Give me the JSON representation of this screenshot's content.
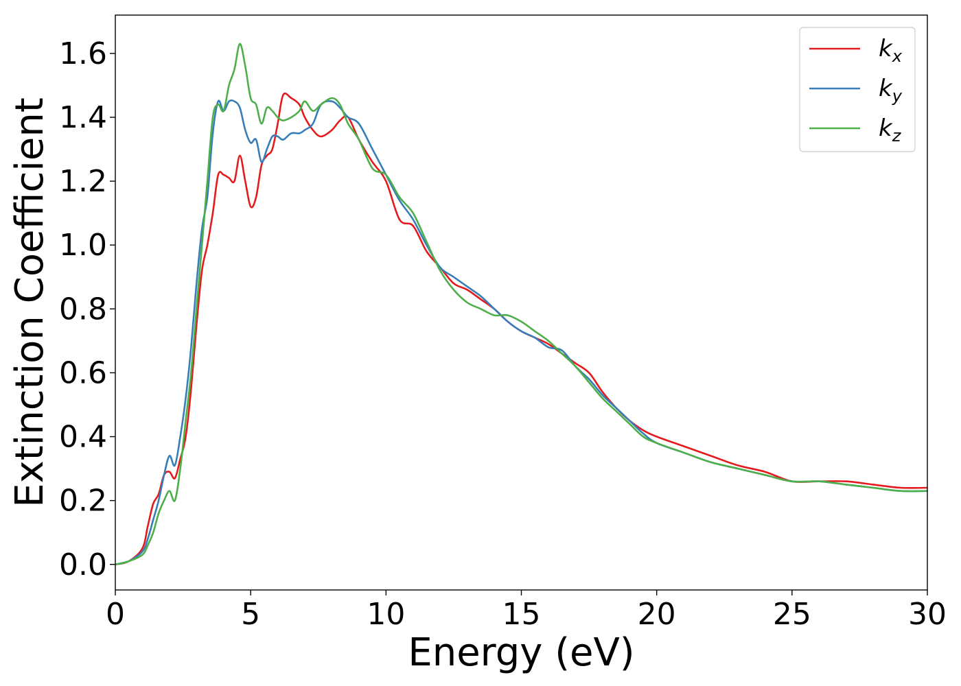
{
  "chart_data": {
    "type": "line",
    "title": "",
    "xlabel": "Energy (eV)",
    "ylabel": "Extinction Coefficient",
    "xlim": [
      0,
      30
    ],
    "ylim": [
      -0.08,
      1.72
    ],
    "x_ticks": [
      0,
      5,
      10,
      15,
      20,
      25,
      30
    ],
    "x_tick_labels": [
      "0",
      "5",
      "10",
      "15",
      "20",
      "25",
      "30"
    ],
    "y_ticks": [
      0.0,
      0.2,
      0.4,
      0.6,
      0.8,
      1.0,
      1.2,
      1.4,
      1.6
    ],
    "y_tick_labels": [
      "0.0",
      "0.2",
      "0.4",
      "0.6",
      "0.8",
      "1.0",
      "1.2",
      "1.4",
      "1.6"
    ],
    "grid": false,
    "legend_position": "top-right",
    "series": [
      {
        "name": "k_x",
        "legend_main": "k",
        "legend_sub": "x",
        "color": "#e41a1c",
        "x": [
          0,
          0.5,
          1.0,
          1.2,
          1.4,
          1.6,
          1.8,
          2.0,
          2.2,
          2.4,
          2.6,
          2.8,
          3.0,
          3.2,
          3.4,
          3.6,
          3.8,
          4.0,
          4.2,
          4.4,
          4.6,
          4.8,
          5.0,
          5.2,
          5.4,
          5.6,
          5.8,
          6.0,
          6.2,
          6.5,
          6.8,
          7.0,
          7.3,
          7.6,
          8.0,
          8.3,
          8.6,
          9.0,
          9.5,
          10.0,
          10.5,
          11.0,
          11.5,
          12.0,
          12.5,
          13.0,
          13.5,
          14.0,
          14.5,
          15.0,
          15.5,
          16.0,
          16.5,
          17.0,
          17.5,
          18.0,
          18.5,
          19.0,
          19.5,
          20.0,
          21.0,
          22.0,
          23.0,
          24.0,
          25.0,
          26.0,
          27.0,
          28.0,
          29.0,
          30.0
        ],
        "y": [
          0.0,
          0.01,
          0.05,
          0.12,
          0.19,
          0.22,
          0.28,
          0.29,
          0.27,
          0.33,
          0.4,
          0.55,
          0.75,
          0.92,
          1.0,
          1.1,
          1.22,
          1.22,
          1.21,
          1.2,
          1.28,
          1.2,
          1.12,
          1.15,
          1.25,
          1.28,
          1.3,
          1.38,
          1.47,
          1.46,
          1.44,
          1.4,
          1.36,
          1.34,
          1.36,
          1.39,
          1.4,
          1.33,
          1.26,
          1.2,
          1.08,
          1.06,
          0.98,
          0.93,
          0.88,
          0.86,
          0.83,
          0.8,
          0.76,
          0.73,
          0.71,
          0.69,
          0.66,
          0.63,
          0.6,
          0.54,
          0.49,
          0.45,
          0.42,
          0.4,
          0.37,
          0.34,
          0.31,
          0.29,
          0.26,
          0.26,
          0.26,
          0.25,
          0.24,
          0.24
        ]
      },
      {
        "name": "k_y",
        "legend_main": "k",
        "legend_sub": "y",
        "color": "#377eb8",
        "x": [
          0,
          0.5,
          1.0,
          1.2,
          1.4,
          1.6,
          1.8,
          2.0,
          2.2,
          2.4,
          2.6,
          2.8,
          3.0,
          3.2,
          3.4,
          3.6,
          3.8,
          4.0,
          4.2,
          4.4,
          4.6,
          4.8,
          5.0,
          5.2,
          5.4,
          5.6,
          5.8,
          6.0,
          6.2,
          6.5,
          6.8,
          7.0,
          7.3,
          7.6,
          8.0,
          8.3,
          8.6,
          9.0,
          9.5,
          10.0,
          10.5,
          11.0,
          11.5,
          12.0,
          12.5,
          13.0,
          13.5,
          14.0,
          14.5,
          15.0,
          15.5,
          16.0,
          16.5,
          17.0,
          17.5,
          18.0,
          18.5,
          19.0,
          19.5,
          20.0,
          21.0,
          22.0,
          23.0,
          24.0,
          25.0,
          26.0,
          27.0,
          28.0,
          29.0,
          30.0
        ],
        "y": [
          0.0,
          0.01,
          0.04,
          0.08,
          0.14,
          0.2,
          0.28,
          0.34,
          0.31,
          0.4,
          0.52,
          0.68,
          0.88,
          1.05,
          1.15,
          1.35,
          1.45,
          1.42,
          1.45,
          1.45,
          1.43,
          1.36,
          1.32,
          1.33,
          1.26,
          1.3,
          1.34,
          1.34,
          1.33,
          1.35,
          1.35,
          1.36,
          1.38,
          1.44,
          1.45,
          1.43,
          1.4,
          1.38,
          1.3,
          1.22,
          1.14,
          1.08,
          1.0,
          0.93,
          0.9,
          0.87,
          0.84,
          0.8,
          0.76,
          0.73,
          0.71,
          0.68,
          0.67,
          0.62,
          0.58,
          0.53,
          0.49,
          0.45,
          0.41,
          0.38,
          0.35,
          0.32,
          0.3,
          0.28,
          0.26,
          0.26,
          0.25,
          0.24,
          0.23,
          0.23
        ]
      },
      {
        "name": "k_z",
        "legend_main": "k",
        "legend_sub": "z",
        "color": "#4daf4a",
        "x": [
          0,
          0.5,
          1.0,
          1.2,
          1.4,
          1.6,
          1.8,
          2.0,
          2.2,
          2.4,
          2.6,
          2.8,
          3.0,
          3.2,
          3.4,
          3.6,
          3.8,
          4.0,
          4.2,
          4.4,
          4.6,
          4.8,
          5.0,
          5.2,
          5.4,
          5.6,
          5.8,
          6.0,
          6.2,
          6.5,
          6.8,
          7.0,
          7.3,
          7.6,
          8.0,
          8.3,
          8.6,
          9.0,
          9.5,
          10.0,
          10.5,
          11.0,
          11.5,
          12.0,
          12.5,
          13.0,
          13.5,
          14.0,
          14.5,
          15.0,
          15.5,
          16.0,
          16.5,
          17.0,
          17.5,
          18.0,
          18.5,
          19.0,
          19.5,
          20.0,
          21.0,
          22.0,
          23.0,
          24.0,
          25.0,
          26.0,
          27.0,
          28.0,
          29.0,
          30.0
        ],
        "y": [
          0.0,
          0.01,
          0.03,
          0.06,
          0.1,
          0.16,
          0.2,
          0.23,
          0.2,
          0.3,
          0.45,
          0.6,
          0.8,
          1.0,
          1.2,
          1.4,
          1.44,
          1.42,
          1.5,
          1.55,
          1.63,
          1.56,
          1.46,
          1.44,
          1.38,
          1.43,
          1.42,
          1.4,
          1.39,
          1.4,
          1.42,
          1.45,
          1.42,
          1.44,
          1.46,
          1.44,
          1.38,
          1.33,
          1.24,
          1.22,
          1.15,
          1.1,
          1.01,
          0.92,
          0.86,
          0.82,
          0.8,
          0.78,
          0.78,
          0.76,
          0.73,
          0.7,
          0.66,
          0.62,
          0.57,
          0.52,
          0.48,
          0.44,
          0.4,
          0.38,
          0.35,
          0.32,
          0.3,
          0.28,
          0.26,
          0.26,
          0.25,
          0.24,
          0.23,
          0.23
        ]
      }
    ]
  }
}
